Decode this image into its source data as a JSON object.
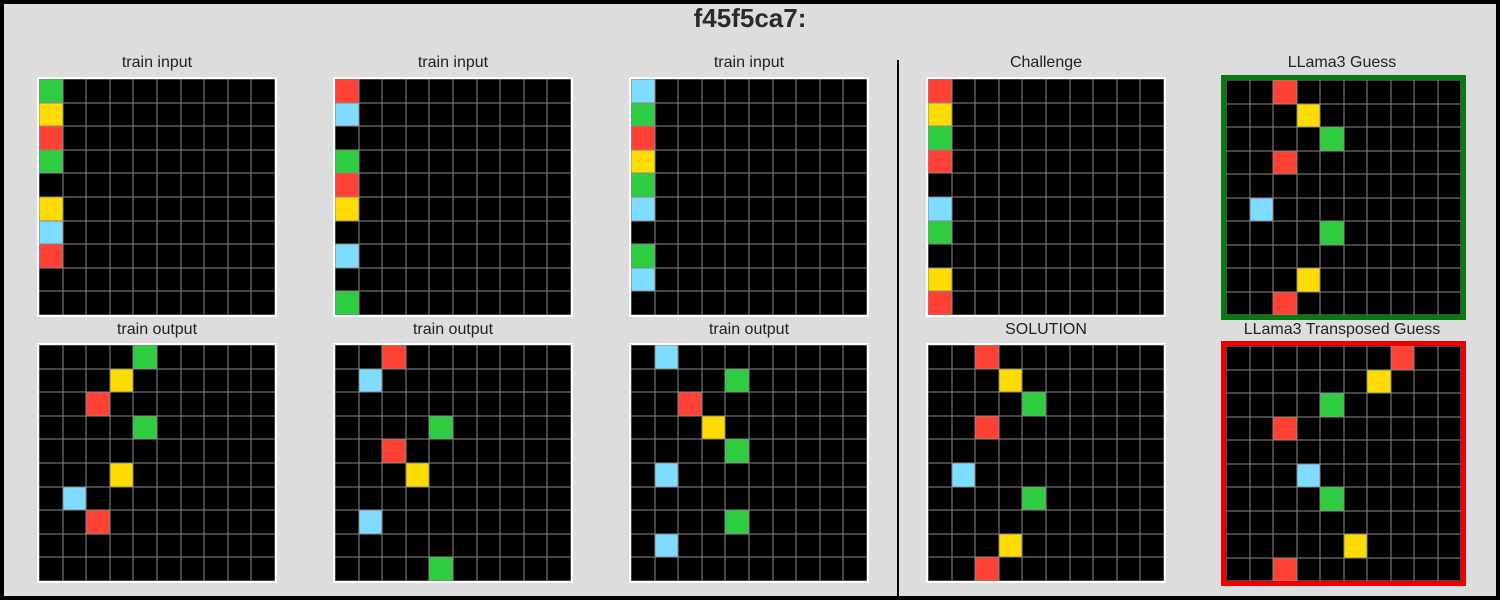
{
  "title": "f45f5ca7:",
  "colors": {
    "0": "#000000",
    "R": "#ff4136",
    "Y": "#ffdc00",
    "G": "#2ecc40",
    "B": "#7fdbff"
  },
  "panels": [
    {
      "id": "train-input-1",
      "title": "train input",
      "rows": [
        "G000000000",
        "Y000000000",
        "R000000000",
        "G000000000",
        "0000000000",
        "Y000000000",
        "B000000000",
        "R000000000",
        "0000000000",
        "0000000000"
      ]
    },
    {
      "id": "train-input-2",
      "title": "train input",
      "rows": [
        "R000000000",
        "B000000000",
        "0000000000",
        "G000000000",
        "R000000000",
        "Y000000000",
        "0000000000",
        "B000000000",
        "0000000000",
        "G000000000"
      ]
    },
    {
      "id": "train-input-3",
      "title": "train input",
      "rows": [
        "B000000000",
        "G000000000",
        "R000000000",
        "Y000000000",
        "G000000000",
        "B000000000",
        "0000000000",
        "G000000000",
        "B000000000",
        "0000000000"
      ]
    },
    {
      "id": "challenge",
      "title": "Challenge",
      "rows": [
        "R000000000",
        "Y000000000",
        "G000000000",
        "R000000000",
        "0000000000",
        "B000000000",
        "G000000000",
        "0000000000",
        "Y000000000",
        "R000000000"
      ]
    },
    {
      "id": "llama3-guess",
      "title": "LLama3 Guess",
      "frame": "green",
      "rows": [
        "00R0000000",
        "000Y000000",
        "0000G00000",
        "00R0000000",
        "0000000000",
        "0B00000000",
        "0000G00000",
        "0000000000",
        "000Y000000",
        "00R0000000"
      ]
    },
    {
      "id": "train-output-1",
      "title": "train output",
      "rows": [
        "0000G00000",
        "000Y000000",
        "00R0000000",
        "0000G00000",
        "0000000000",
        "000Y000000",
        "0B00000000",
        "00R0000000",
        "0000000000",
        "0000000000"
      ]
    },
    {
      "id": "train-output-2",
      "title": "train output",
      "rows": [
        "00R0000000",
        "0B00000000",
        "0000000000",
        "0000G00000",
        "00R0000000",
        "000Y000000",
        "0000000000",
        "0B00000000",
        "0000000000",
        "0000G00000"
      ]
    },
    {
      "id": "train-output-3",
      "title": "train output",
      "rows": [
        "0B00000000",
        "0000G00000",
        "00R0000000",
        "000Y000000",
        "0000G00000",
        "0B00000000",
        "0000000000",
        "0000G00000",
        "0B00000000",
        "0000000000"
      ]
    },
    {
      "id": "solution",
      "title": "SOLUTION",
      "rows": [
        "00R0000000",
        "000Y000000",
        "0000G00000",
        "00R0000000",
        "0000000000",
        "0B00000000",
        "0000G00000",
        "0000000000",
        "000Y000000",
        "00R0000000"
      ]
    },
    {
      "id": "llama3-transposed-guess",
      "title": "LLama3 Transposed Guess",
      "frame": "red",
      "rows": [
        "0000000R00",
        "000000Y000",
        "0000G00000",
        "00R0000000",
        "0000000000",
        "000B000000",
        "0000G00000",
        "0000000000",
        "00000Y0000",
        "00R0000000"
      ]
    }
  ]
}
